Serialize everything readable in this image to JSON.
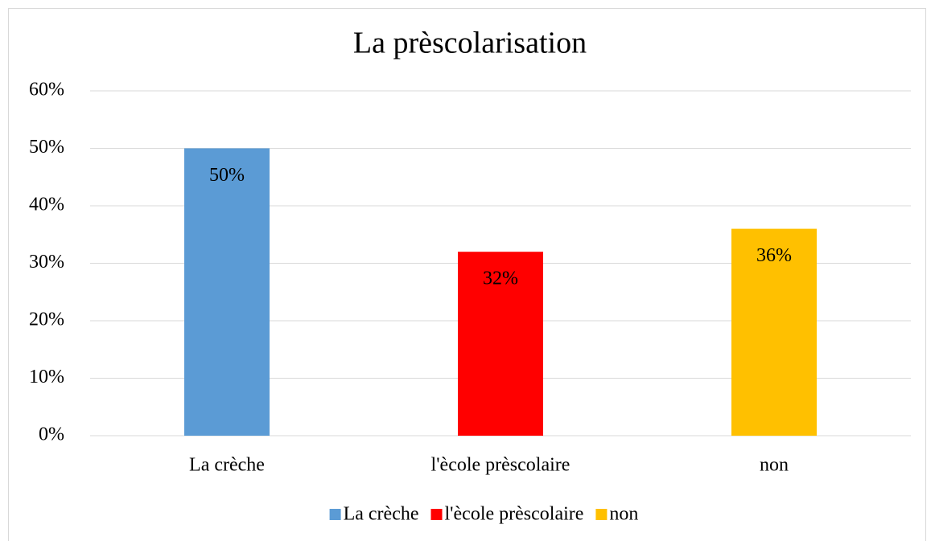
{
  "chart_data": {
    "type": "bar",
    "title": "La prèscolarisation",
    "categories": [
      "La crèche",
      "l'ècole prèscolaire",
      "non"
    ],
    "series": [
      {
        "name": "La crèche",
        "color": "#5b9bd5",
        "values": [
          50,
          null,
          null
        ],
        "value_labels": [
          "50%",
          null,
          null
        ]
      },
      {
        "name": "l'ècole prèscolaire",
        "color": "#ff0000",
        "values": [
          null,
          32,
          null
        ],
        "value_labels": [
          null,
          "32%",
          null
        ]
      },
      {
        "name": "non",
        "color": "#ffc000",
        "values": [
          null,
          null,
          36
        ],
        "value_labels": [
          null,
          null,
          "36%"
        ]
      }
    ],
    "ylim": [
      0,
      60
    ],
    "yticks": [
      {
        "value": 0,
        "label": "0%"
      },
      {
        "value": 10,
        "label": "10%"
      },
      {
        "value": 20,
        "label": "20%"
      },
      {
        "value": 30,
        "label": "30%"
      },
      {
        "value": 40,
        "label": "40%"
      },
      {
        "value": 50,
        "label": "50%"
      },
      {
        "value": 60,
        "label": "60%"
      }
    ],
    "grid": true,
    "legend": "bottom"
  }
}
